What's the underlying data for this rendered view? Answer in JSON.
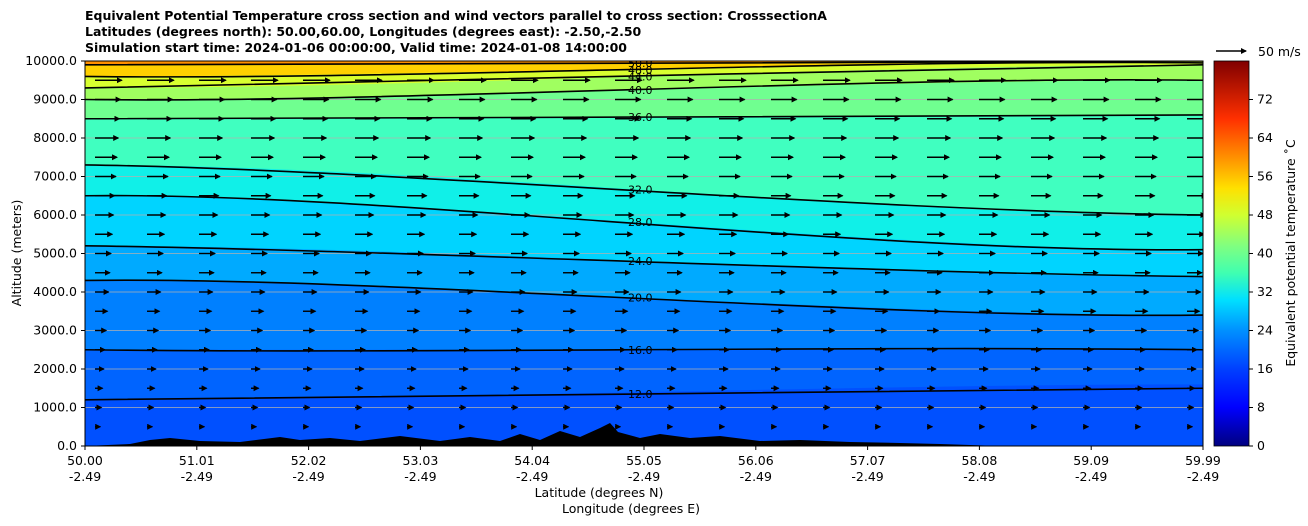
{
  "title": {
    "line1": "Equivalent Potential Temperature cross section and wind vectors parallel to cross section: CrosssectionA",
    "line2": "Latitudes (degrees north): 50.00,60.00, Longitudes (degrees east): -2.50,-2.50",
    "line3": "Simulation start time: 2024-01-06 00:00:00, Valid time: 2024-01-08 14:00:00"
  },
  "chart_data": {
    "type": "contourf",
    "title": "Equivalent Potential Temperature cross section and wind vectors parallel to cross section: CrosssectionA",
    "ylabel": "Altitude (meters)",
    "xlabel_line1": "Latitude (degrees N)",
    "xlabel_line2": "Longitude (degrees E)",
    "ylim": [
      0,
      10000
    ],
    "xlim": [
      50.0,
      59.99
    ],
    "y_ticks": [
      "0.0",
      "1000.0",
      "2000.0",
      "3000.0",
      "4000.0",
      "5000.0",
      "6000.0",
      "7000.0",
      "8000.0",
      "9000.0",
      "10000.0"
    ],
    "x_ticks": [
      {
        "lat": "50.00",
        "lon": "-2.49"
      },
      {
        "lat": "51.01",
        "lon": "-2.49"
      },
      {
        "lat": "52.02",
        "lon": "-2.49"
      },
      {
        "lat": "53.03",
        "lon": "-2.49"
      },
      {
        "lat": "54.04",
        "lon": "-2.49"
      },
      {
        "lat": "55.05",
        "lon": "-2.49"
      },
      {
        "lat": "56.06",
        "lon": "-2.49"
      },
      {
        "lat": "57.07",
        "lon": "-2.49"
      },
      {
        "lat": "58.08",
        "lon": "-2.49"
      },
      {
        "lat": "59.09",
        "lon": "-2.49"
      },
      {
        "lat": "59.99",
        "lon": "-2.49"
      }
    ],
    "grid": "horizontal",
    "colorbar": {
      "label": "Equivalent potential temperature ˚C",
      "min": 0,
      "max": 80,
      "step": 2,
      "ticks": [
        "0",
        "8",
        "16",
        "24",
        "32",
        "40",
        "48",
        "56",
        "64",
        "72"
      ]
    },
    "quiver_key": {
      "label": "50 m/s"
    },
    "contour_lines": [
      {
        "label": "12.0",
        "alt_m": [
          1200,
          1500
        ]
      },
      {
        "label": "16.0",
        "alt_m": [
          2500,
          2500
        ]
      },
      {
        "label": "20.0",
        "alt_m": [
          4300,
          3400
        ]
      },
      {
        "label": "24.0",
        "alt_m": [
          5200,
          4400
        ]
      },
      {
        "label": "28.0",
        "alt_m": [
          6500,
          5100
        ]
      },
      {
        "label": "32.0",
        "alt_m": [
          7300,
          6000
        ]
      },
      {
        "label": "36.0",
        "alt_m": [
          8500,
          8600
        ]
      },
      {
        "label": "40.0",
        "alt_m": [
          9000,
          9500
        ]
      },
      {
        "label": "44.0",
        "alt_m": [
          9300,
          9900
        ]
      },
      {
        "label": "48.0",
        "alt_m": [
          9600,
          9950
        ]
      },
      {
        "label": "50.0",
        "alt_m": [
          9900,
          10000
        ]
      }
    ]
  }
}
